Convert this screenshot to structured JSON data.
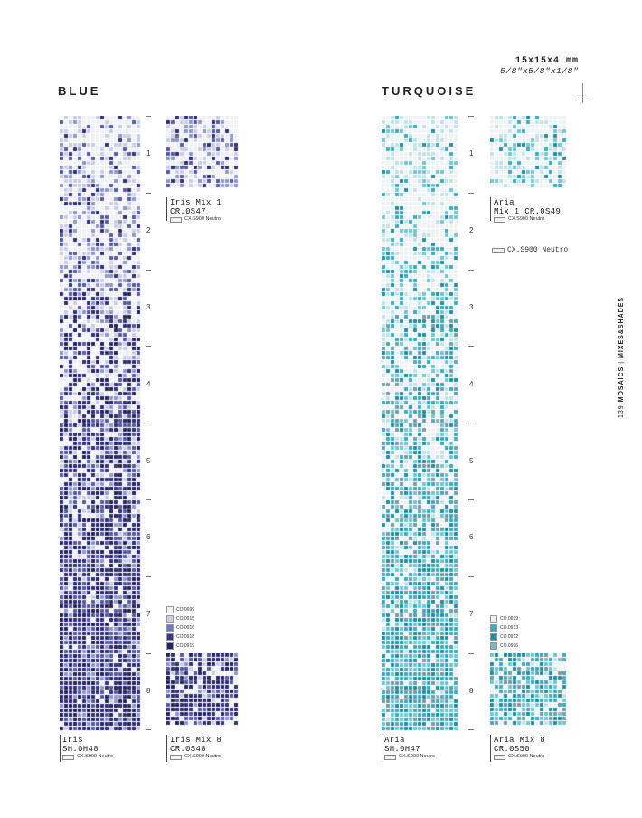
{
  "header": {
    "dim_mm": "15x15x4 mm",
    "dim_in": "5/8\"x5/8\"x1/8\""
  },
  "side_label": {
    "page": "139",
    "section1": "MOSAICS",
    "sep": "|",
    "section2": "MIXES&SHADES"
  },
  "tick_numbers": [
    "1",
    "2",
    "3",
    "4",
    "5",
    "6",
    "7",
    "8"
  ],
  "blue": {
    "title": "BLUE",
    "colors": {
      "white": "#f1f1f3",
      "pale": "#c9cde6",
      "light": "#8e96cf",
      "mid": "#545aa6",
      "dark": "#2f2e7a",
      "navy": "#262363"
    },
    "gradient_name": "Iris",
    "gradient_code": "SH.0H48",
    "gradient_grout": "CX.S900 Neutro",
    "mix1_name": "Iris Mix 1",
    "mix1_code": "CR.0S47",
    "mix1_grout": "CX.S900 Neutro",
    "mix8_name": "Iris Mix 8",
    "mix8_code": "CR.0S48",
    "mix8_grout": "CX.S900 Neutro",
    "legend": [
      {
        "code": "CO.0699",
        "color": "#f1f1f3"
      },
      {
        "code": "CO.0915",
        "color": "#c9cde6"
      },
      {
        "code": "CO.0916",
        "color": "#6f77bd"
      },
      {
        "code": "CO.0918",
        "color": "#3a3a8a"
      },
      {
        "code": "CO.0919",
        "color": "#262363"
      }
    ]
  },
  "turquoise": {
    "title": "TURQUOISE",
    "colors": {
      "white": "#eff2f3",
      "pale": "#bfe3e8",
      "light": "#6fc5d2",
      "mid": "#3aaabc",
      "dark": "#1f8ea3",
      "grey": "#6f9ea6"
    },
    "gradient_name": "Aria",
    "gradient_code": "SH.0H47",
    "gradient_grout": "CX.S900 Neutro",
    "mix1_name": "Aria",
    "mix1_name2": "Mix 1 CR.0S49",
    "mix1_grout": "CX.S900 Neutro",
    "grout_big": "CX.S900 Neutro",
    "mix8_name": "Aria Mix 8",
    "mix8_code": "CR.0S50",
    "mix8_grout": "CX.S900 Neutro",
    "legend": [
      {
        "code": "CO.0699",
        "color": "#eff2f3"
      },
      {
        "code": "CO.0913",
        "color": "#3aaabc"
      },
      {
        "code": "CO.0912",
        "color": "#1f8ea3"
      },
      {
        "code": "CO.0996",
        "color": "#7fb7bf"
      }
    ]
  }
}
